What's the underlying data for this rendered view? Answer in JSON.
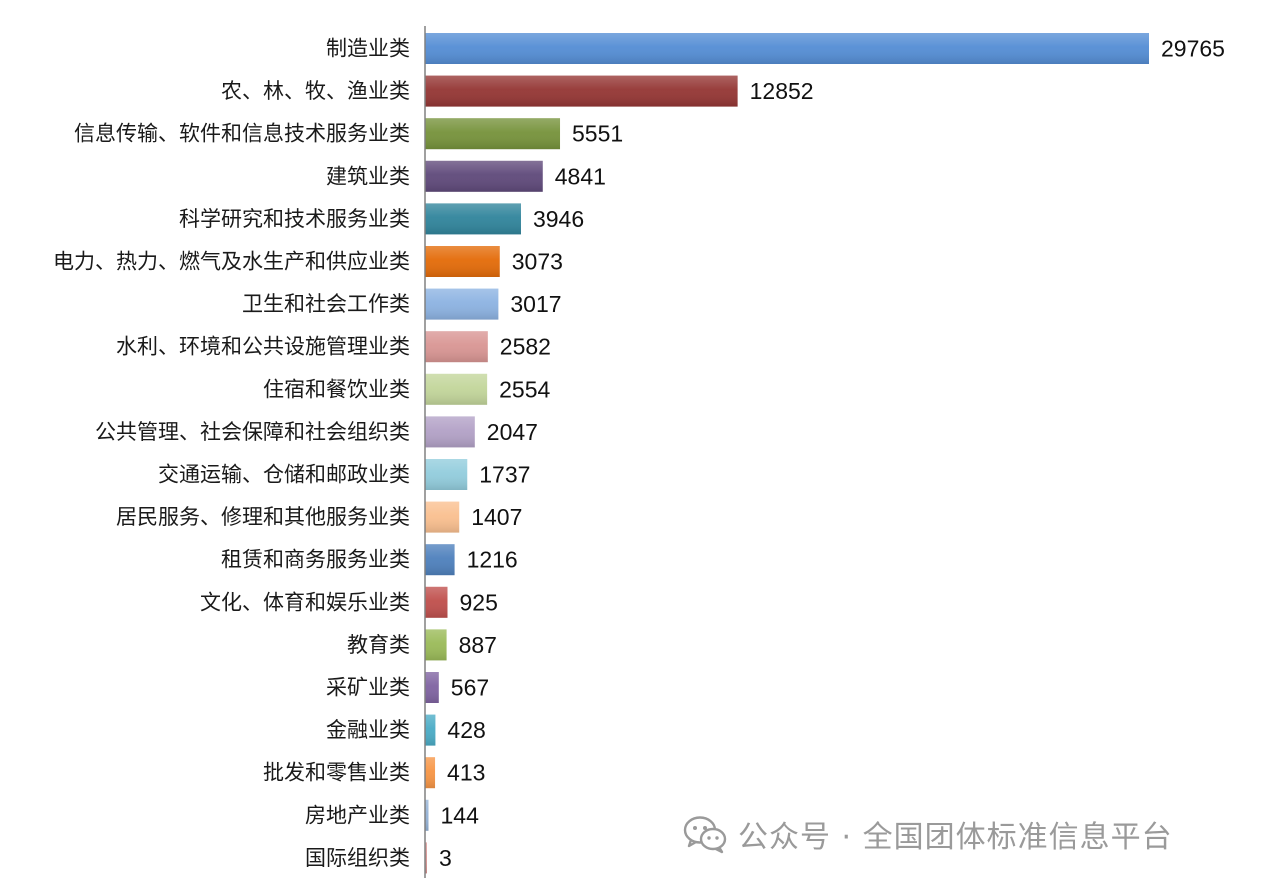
{
  "chart_data": {
    "type": "bar",
    "orientation": "horizontal",
    "categories": [
      "制造业类",
      "农、林、牧、渔业类",
      "信息传输、软件和信息技术服务业类",
      "建筑业类",
      "科学研究和技术服务业类",
      "电力、热力、燃气及水生产和供应业类",
      "卫生和社会工作类",
      "水利、环境和公共设施管理业类",
      "住宿和餐饮业类",
      "公共管理、社会保障和社会组织类",
      "交通运输、仓储和邮政业类",
      "居民服务、修理和其他服务业类",
      "租赁和商务服务业类",
      "文化、体育和娱乐业类",
      "教育类",
      "采矿业类",
      "金融业类",
      "批发和零售业类",
      "房地产业类",
      "国际组织类"
    ],
    "values": [
      29765,
      12852,
      5551,
      4841,
      3946,
      3073,
      3017,
      2582,
      2554,
      2047,
      1737,
      1407,
      1216,
      925,
      887,
      567,
      428,
      413,
      144,
      3
    ],
    "colors": [
      "#558ed5",
      "#953735",
      "#77933c",
      "#604a7b",
      "#31859c",
      "#e46c0a",
      "#8db3e2",
      "#d99694",
      "#c3d69b",
      "#b3a2c7",
      "#93cddd",
      "#fac090",
      "#4f81bd",
      "#c0504d",
      "#9bbb59",
      "#8064a2",
      "#4bacc6",
      "#f79646",
      "#95b3d7",
      "#d99694"
    ],
    "xlim": [
      0,
      29765
    ],
    "title": "",
    "xlabel": "",
    "ylabel": "",
    "grid": false,
    "legend": "none"
  },
  "watermark": {
    "text": "公众号 · 全国团体标准信息平台",
    "icon": "wechat-icon"
  }
}
